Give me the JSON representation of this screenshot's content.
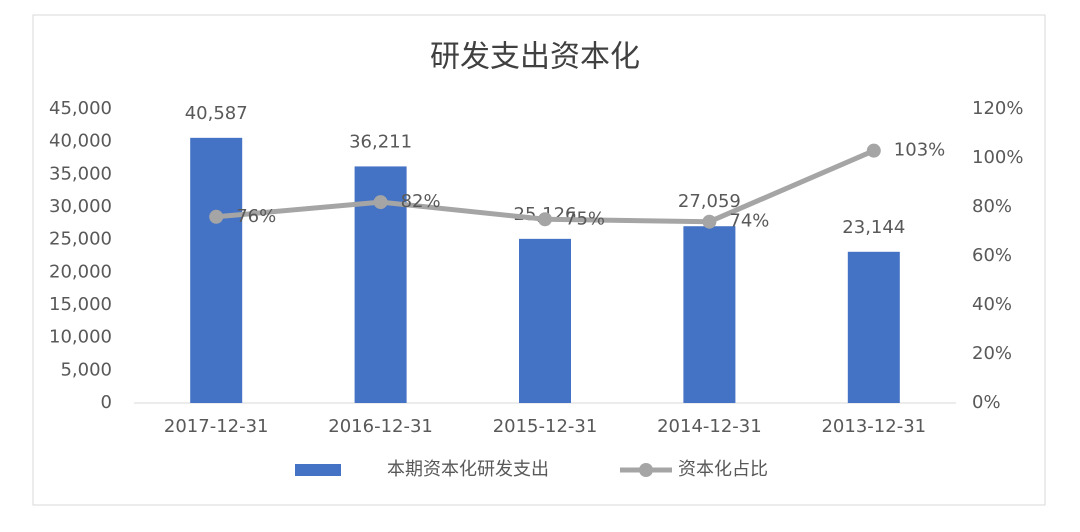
{
  "chart_data": {
    "type": "bar",
    "title": "研发支出资本化",
    "categories": [
      "2017-12-31",
      "2016-12-31",
      "2015-12-31",
      "2014-12-31",
      "2013-12-31"
    ],
    "series": [
      {
        "name": "本期资本化研发支出",
        "type": "bar",
        "color": "#4472c4",
        "values": [
          40587,
          36211,
          25126,
          27059,
          23144
        ],
        "value_labels": [
          "40,587",
          "36,211",
          "25,126",
          "27,059",
          "23,144"
        ]
      },
      {
        "name": "资本化占比",
        "type": "line",
        "axis": "y2",
        "color": "#a5a5a5",
        "values": [
          76,
          82,
          75,
          74,
          103
        ],
        "value_labels": [
          "76%",
          "82%",
          "75%",
          "74%",
          "103%"
        ]
      }
    ],
    "ylim": [
      0,
      45000
    ],
    "yticks": [
      0,
      {
        "value": 5000,
        "label": "5,000"
      },
      {
        "value": 10000,
        "label": "10,000"
      },
      {
        "value": 15000,
        "label": "15,000"
      },
      {
        "value": 20000,
        "label": "20,000"
      },
      {
        "value": 25000,
        "label": "25,000"
      },
      {
        "value": 30000,
        "label": "30,000"
      },
      {
        "value": 35000,
        "label": "35,000"
      },
      {
        "value": 40000,
        "label": "40,000"
      },
      {
        "value": 45000,
        "label": "45,000"
      }
    ],
    "y2lim": [
      0,
      120
    ],
    "y2ticks": [
      {
        "value": 0,
        "label": "0%"
      },
      {
        "value": 20,
        "label": "20%"
      },
      {
        "value": 40,
        "label": "40%"
      },
      {
        "value": 60,
        "label": "60%"
      },
      {
        "value": 80,
        "label": "80%"
      },
      {
        "value": 100,
        "label": "100%"
      },
      {
        "value": 120,
        "label": "120%"
      }
    ],
    "grid": false,
    "legend": "bottom"
  }
}
